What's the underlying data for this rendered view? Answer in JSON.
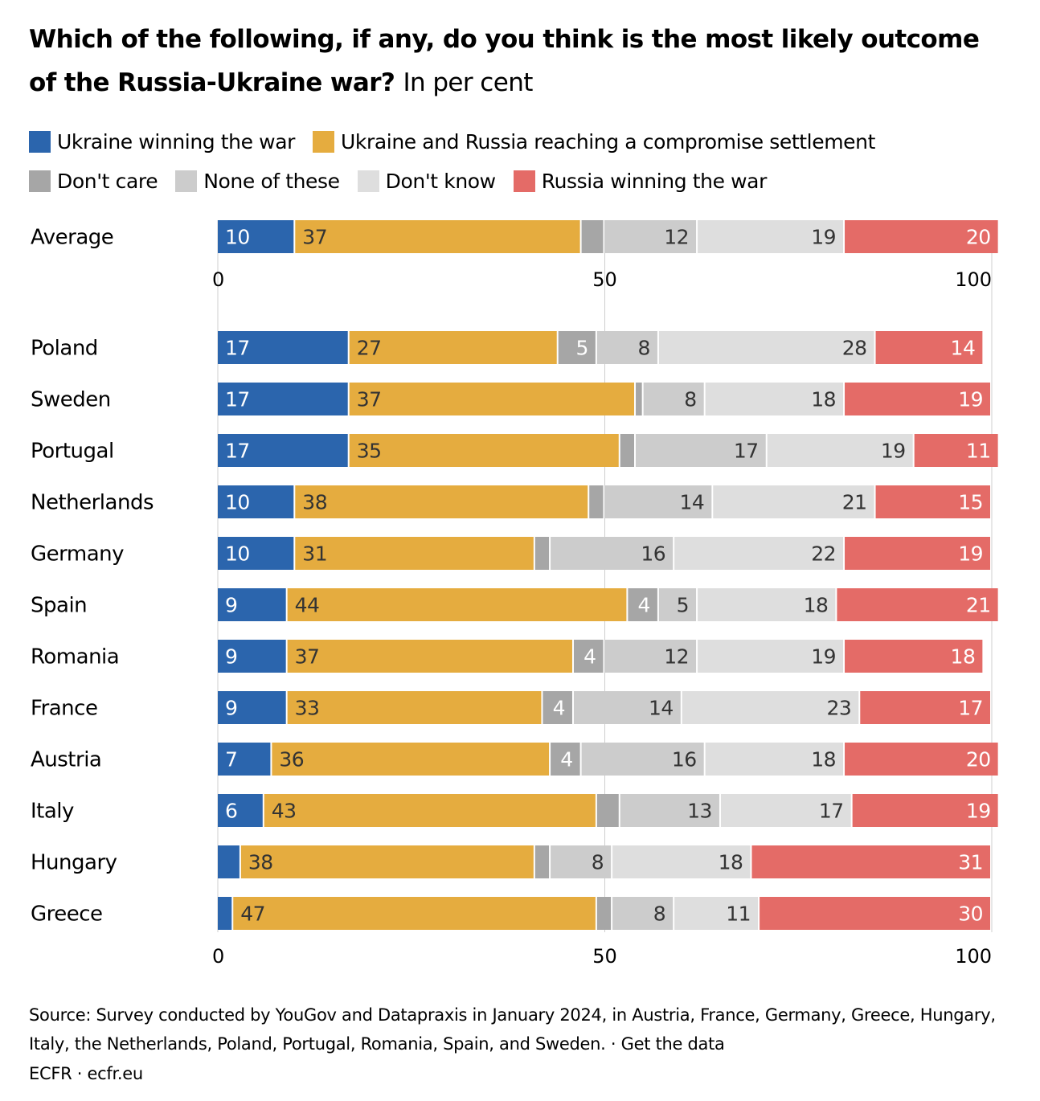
{
  "title": "Which of the following, if any, do you think is the most likely outcome of the Russia-Ukraine war?",
  "subtitle": "In per cent",
  "colors": {
    "ukraine": "#2b65ad",
    "compromise": "#e5ac3f",
    "dont_care": "#a6a6a6",
    "none": "#cccccc",
    "dont_know": "#dedede",
    "russia": "#e46b67"
  },
  "legend": [
    {
      "key": "ukraine",
      "label": "Ukraine winning the war"
    },
    {
      "key": "compromise",
      "label": "Ukraine and Russia reaching a compromise settlement"
    },
    {
      "key": "dont_care",
      "label": "Don't care"
    },
    {
      "key": "none",
      "label": "None of these"
    },
    {
      "key": "dont_know",
      "label": "Don't know"
    },
    {
      "key": "russia",
      "label": "Russia winning the war"
    }
  ],
  "chart_data": {
    "type": "bar",
    "orientation": "horizontal",
    "stacked": true,
    "xlim": [
      0,
      100
    ],
    "xticks": [
      0,
      50,
      100
    ],
    "series_keys": [
      "ukraine",
      "compromise",
      "dont_care",
      "none",
      "dont_know",
      "russia"
    ],
    "series": [
      {
        "name": "Ukraine winning the war",
        "key": "ukraine"
      },
      {
        "name": "Ukraine and Russia reaching a compromise settlement",
        "key": "compromise"
      },
      {
        "name": "Don't care",
        "key": "dont_care"
      },
      {
        "name": "None of these",
        "key": "none"
      },
      {
        "name": "Don't know",
        "key": "dont_know"
      },
      {
        "name": "Russia winning the war",
        "key": "russia"
      }
    ],
    "average": {
      "category": "Average",
      "values": [
        10,
        37,
        3,
        12,
        19,
        20
      ]
    },
    "categories": [
      "Poland",
      "Sweden",
      "Portugal",
      "Netherlands",
      "Germany",
      "Spain",
      "Romania",
      "France",
      "Austria",
      "Italy",
      "Hungary",
      "Greece"
    ],
    "values": [
      [
        17,
        27,
        5,
        8,
        28,
        14
      ],
      [
        17,
        37,
        1,
        8,
        18,
        19
      ],
      [
        17,
        35,
        2,
        17,
        19,
        11
      ],
      [
        10,
        38,
        2,
        14,
        21,
        15
      ],
      [
        10,
        31,
        2,
        16,
        22,
        19
      ],
      [
        9,
        44,
        4,
        5,
        18,
        21
      ],
      [
        9,
        37,
        4,
        12,
        19,
        18
      ],
      [
        9,
        33,
        4,
        14,
        23,
        17
      ],
      [
        7,
        36,
        4,
        16,
        18,
        20
      ],
      [
        6,
        43,
        3,
        13,
        17,
        19
      ],
      [
        3,
        38,
        2,
        8,
        18,
        31
      ],
      [
        2,
        47,
        2,
        8,
        11,
        30
      ]
    ],
    "label_min": 4
  },
  "footer": {
    "source": "Source: Survey conducted by YouGov and Datapraxis in January 2024, in Austria, France, Germany, Greece, Hungary, Italy, the Netherlands, Poland, Portugal, Romania, Spain, and Sweden. · Get the data",
    "credit": "ECFR · ecfr.eu"
  }
}
